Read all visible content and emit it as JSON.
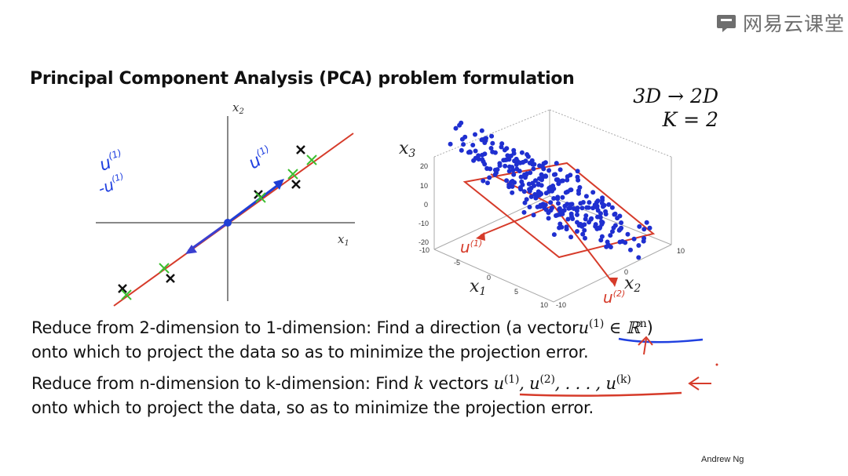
{
  "watermark": "网易云课堂",
  "title": "Principal Component Analysis (PCA) problem formulation",
  "dim_note": {
    "line1": "3D → 2D",
    "line2": "K = 2"
  },
  "plot2d": {
    "x_axis_label": "x",
    "x_axis_sub": "1",
    "y_axis_label": "x",
    "y_axis_sub": "2",
    "annot_u": "u",
    "annot_u_sup": "(1)",
    "annot_neg_u": "-u",
    "annot_neg_u_sup": "(1)",
    "annot_u_mid": "u",
    "annot_u_mid_sup": "(1)"
  },
  "plot3d": {
    "z_axis_label": "x",
    "z_axis_sub": "3",
    "x_axis_label": "x",
    "x_axis_sub": "1",
    "y_axis_label": "x",
    "y_axis_sub": "2",
    "z_ticks": [
      "20",
      "10",
      "0",
      "-10",
      "-20"
    ],
    "x_ticks": [
      "-10",
      "-5",
      "0",
      "5",
      "10"
    ],
    "y_ticks": [
      "-10",
      "0",
      "10"
    ],
    "annot_u1": "u",
    "annot_u1_sup": "(1)",
    "annot_u2": "u",
    "annot_u2_sup": "(2)"
  },
  "body": {
    "line1_text": "Reduce from 2-dimension to 1-dimension: Find a direction (a vector",
    "line1_math": "u",
    "line1_sup": "(1)",
    "line1_math_tail": "∈ ℝ",
    "line1_math_tail_sup": "n",
    "line1_close": ")",
    "line2_text": "onto which to project the data so as to minimize the projection error.",
    "line3_text": "Reduce from n-dimension to k-dimension: Find",
    "line3_k": "k",
    "line3_text2": "vectors",
    "line3_math": "u",
    "line3_sup1": "(1)",
    "line3_sep1": ", u",
    "line3_sup2": "(2)",
    "line3_sep2": ", . . . , u",
    "line3_supk": "(k)",
    "line4_text": "onto which to project the data, so as to minimize the projection error."
  },
  "credit": "Andrew Ng",
  "colors": {
    "blue": "#1f3fd6",
    "red": "#d63b2a",
    "green": "#3cbf30",
    "gray": "#777777"
  }
}
